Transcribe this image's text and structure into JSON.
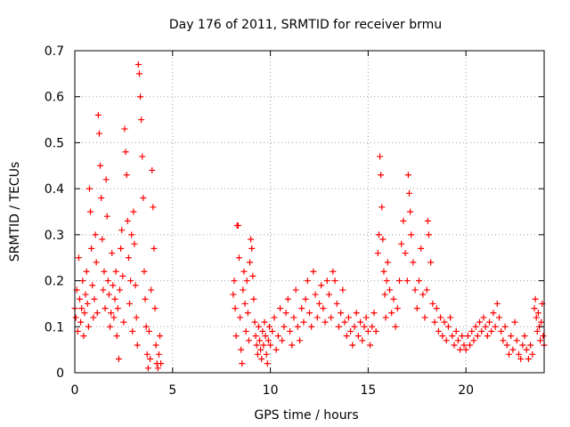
{
  "chart_data": {
    "type": "scatter",
    "title": "Day 176 of 2011, SRMTID for receiver brmu",
    "xlabel": "GPS time / hours",
    "ylabel": "SRMTID / TECUs",
    "xlim": [
      0,
      24
    ],
    "ylim": [
      0,
      0.7
    ],
    "x_ticks": [
      0,
      5,
      10,
      15,
      20
    ],
    "x_tick_labels": [
      "0",
      "5",
      "10",
      "15",
      "20"
    ],
    "y_ticks": [
      0,
      0.1,
      0.2,
      0.3,
      0.4,
      0.5,
      0.6,
      0.7
    ],
    "y_tick_labels": [
      "0",
      "0.1",
      "0.2",
      "0.3",
      "0.4",
      "0.5",
      "0.6",
      "0.7"
    ],
    "grid": true,
    "marker": "+",
    "series_color": "#ff0000",
    "grid_color": "#a0a0a0",
    "series": [
      {
        "name": "SRMTID",
        "points": [
          [
            0.0,
            0.14
          ],
          [
            0.05,
            0.12
          ],
          [
            0.1,
            0.18
          ],
          [
            0.15,
            0.09
          ],
          [
            0.2,
            0.25
          ],
          [
            0.25,
            0.16
          ],
          [
            0.3,
            0.11
          ],
          [
            0.35,
            0.14
          ],
          [
            0.4,
            0.2
          ],
          [
            0.45,
            0.08
          ],
          [
            0.5,
            0.13
          ],
          [
            0.55,
            0.17
          ],
          [
            0.6,
            0.22
          ],
          [
            0.65,
            0.15
          ],
          [
            0.7,
            0.1
          ],
          [
            0.75,
            0.4
          ],
          [
            0.8,
            0.35
          ],
          [
            0.85,
            0.27
          ],
          [
            0.9,
            0.19
          ],
          [
            0.95,
            0.12
          ],
          [
            1.0,
            0.16
          ],
          [
            1.05,
            0.3
          ],
          [
            1.1,
            0.24
          ],
          [
            1.15,
            0.13
          ],
          [
            1.2,
            0.56
          ],
          [
            1.25,
            0.52
          ],
          [
            1.3,
            0.45
          ],
          [
            1.35,
            0.38
          ],
          [
            1.4,
            0.29
          ],
          [
            1.45,
            0.18
          ],
          [
            1.5,
            0.22
          ],
          [
            1.55,
            0.14
          ],
          [
            1.6,
            0.42
          ],
          [
            1.65,
            0.34
          ],
          [
            1.7,
            0.2
          ],
          [
            1.75,
            0.17
          ],
          [
            1.8,
            0.1
          ],
          [
            1.85,
            0.13
          ],
          [
            1.9,
            0.26
          ],
          [
            1.95,
            0.19
          ],
          [
            2.0,
            0.12
          ],
          [
            2.05,
            0.16
          ],
          [
            2.1,
            0.22
          ],
          [
            2.15,
            0.08
          ],
          [
            2.2,
            0.14
          ],
          [
            2.25,
            0.03
          ],
          [
            2.3,
            0.18
          ],
          [
            2.35,
            0.27
          ],
          [
            2.4,
            0.31
          ],
          [
            2.45,
            0.21
          ],
          [
            2.5,
            0.11
          ],
          [
            2.55,
            0.53
          ],
          [
            2.6,
            0.48
          ],
          [
            2.65,
            0.43
          ],
          [
            2.7,
            0.33
          ],
          [
            2.75,
            0.25
          ],
          [
            2.8,
            0.15
          ],
          [
            2.85,
            0.2
          ],
          [
            2.9,
            0.3
          ],
          [
            2.95,
            0.09
          ],
          [
            3.0,
            0.35
          ],
          [
            3.05,
            0.28
          ],
          [
            3.1,
            0.19
          ],
          [
            3.15,
            0.12
          ],
          [
            3.2,
            0.06
          ],
          [
            3.25,
            0.67
          ],
          [
            3.3,
            0.65
          ],
          [
            3.35,
            0.6
          ],
          [
            3.4,
            0.55
          ],
          [
            3.45,
            0.47
          ],
          [
            3.5,
            0.38
          ],
          [
            3.55,
            0.22
          ],
          [
            3.6,
            0.16
          ],
          [
            3.65,
            0.1
          ],
          [
            3.7,
            0.04
          ],
          [
            3.75,
            0.01
          ],
          [
            3.8,
            0.09
          ],
          [
            3.85,
            0.03
          ],
          [
            3.9,
            0.18
          ],
          [
            3.95,
            0.44
          ],
          [
            4.0,
            0.36
          ],
          [
            4.05,
            0.27
          ],
          [
            4.1,
            0.14
          ],
          [
            4.15,
            0.06
          ],
          [
            4.2,
            0.02
          ],
          [
            4.25,
            0.01
          ],
          [
            4.3,
            0.04
          ],
          [
            4.35,
            0.08
          ],
          [
            4.4,
            0.02
          ],
          [
            8.1,
            0.17
          ],
          [
            8.15,
            0.2
          ],
          [
            8.2,
            0.14
          ],
          [
            8.25,
            0.08
          ],
          [
            8.3,
            0.32
          ],
          [
            8.35,
            0.32
          ],
          [
            8.4,
            0.25
          ],
          [
            8.45,
            0.12
          ],
          [
            8.5,
            0.05
          ],
          [
            8.55,
            0.02
          ],
          [
            8.6,
            0.18
          ],
          [
            8.65,
            0.22
          ],
          [
            8.7,
            0.15
          ],
          [
            8.75,
            0.09
          ],
          [
            8.8,
            0.2
          ],
          [
            8.85,
            0.13
          ],
          [
            8.9,
            0.07
          ],
          [
            8.95,
            0.24
          ],
          [
            9.0,
            0.29
          ],
          [
            9.05,
            0.27
          ],
          [
            9.1,
            0.21
          ],
          [
            9.15,
            0.16
          ],
          [
            9.2,
            0.11
          ],
          [
            9.25,
            0.08
          ],
          [
            9.3,
            0.06
          ],
          [
            9.35,
            0.04
          ],
          [
            9.4,
            0.1
          ],
          [
            9.45,
            0.07
          ],
          [
            9.5,
            0.05
          ],
          [
            9.55,
            0.03
          ],
          [
            9.6,
            0.09
          ],
          [
            9.65,
            0.06
          ],
          [
            9.7,
            0.11
          ],
          [
            9.75,
            0.08
          ],
          [
            9.8,
            0.04
          ],
          [
            9.85,
            0.02
          ],
          [
            9.9,
            0.07
          ],
          [
            9.95,
            0.1
          ],
          [
            10.0,
            0.06
          ],
          [
            10.1,
            0.09
          ],
          [
            10.2,
            0.12
          ],
          [
            10.3,
            0.05
          ],
          [
            10.4,
            0.08
          ],
          [
            10.5,
            0.14
          ],
          [
            10.6,
            0.07
          ],
          [
            10.7,
            0.1
          ],
          [
            10.8,
            0.13
          ],
          [
            10.9,
            0.16
          ],
          [
            11.0,
            0.09
          ],
          [
            11.1,
            0.06
          ],
          [
            11.2,
            0.12
          ],
          [
            11.3,
            0.18
          ],
          [
            11.4,
            0.1
          ],
          [
            11.5,
            0.07
          ],
          [
            11.6,
            0.14
          ],
          [
            11.7,
            0.11
          ],
          [
            11.8,
            0.16
          ],
          [
            11.9,
            0.2
          ],
          [
            12.0,
            0.13
          ],
          [
            12.1,
            0.1
          ],
          [
            12.2,
            0.22
          ],
          [
            12.3,
            0.17
          ],
          [
            12.4,
            0.12
          ],
          [
            12.5,
            0.15
          ],
          [
            12.6,
            0.19
          ],
          [
            12.7,
            0.14
          ],
          [
            12.8,
            0.11
          ],
          [
            12.9,
            0.2
          ],
          [
            13.0,
            0.17
          ],
          [
            13.1,
            0.12
          ],
          [
            13.2,
            0.22
          ],
          [
            13.3,
            0.2
          ],
          [
            13.4,
            0.15
          ],
          [
            13.5,
            0.1
          ],
          [
            13.6,
            0.13
          ],
          [
            13.7,
            0.18
          ],
          [
            13.8,
            0.11
          ],
          [
            13.9,
            0.08
          ],
          [
            14.0,
            0.12
          ],
          [
            14.1,
            0.09
          ],
          [
            14.2,
            0.06
          ],
          [
            14.3,
            0.1
          ],
          [
            14.4,
            0.13
          ],
          [
            14.5,
            0.08
          ],
          [
            14.6,
            0.11
          ],
          [
            14.7,
            0.07
          ],
          [
            14.8,
            0.1
          ],
          [
            14.9,
            0.12
          ],
          [
            15.0,
            0.09
          ],
          [
            15.1,
            0.06
          ],
          [
            15.2,
            0.1
          ],
          [
            15.3,
            0.13
          ],
          [
            15.4,
            0.09
          ],
          [
            15.5,
            0.26
          ],
          [
            15.55,
            0.3
          ],
          [
            15.6,
            0.47
          ],
          [
            15.65,
            0.43
          ],
          [
            15.7,
            0.36
          ],
          [
            15.75,
            0.29
          ],
          [
            15.8,
            0.22
          ],
          [
            15.85,
            0.17
          ],
          [
            15.9,
            0.12
          ],
          [
            15.95,
            0.2
          ],
          [
            16.0,
            0.24
          ],
          [
            16.1,
            0.18
          ],
          [
            16.2,
            0.13
          ],
          [
            16.3,
            0.16
          ],
          [
            16.4,
            0.1
          ],
          [
            16.5,
            0.14
          ],
          [
            16.6,
            0.2
          ],
          [
            16.7,
            0.28
          ],
          [
            16.8,
            0.33
          ],
          [
            16.9,
            0.26
          ],
          [
            17.0,
            0.2
          ],
          [
            17.05,
            0.43
          ],
          [
            17.1,
            0.39
          ],
          [
            17.15,
            0.35
          ],
          [
            17.2,
            0.3
          ],
          [
            17.3,
            0.24
          ],
          [
            17.4,
            0.18
          ],
          [
            17.5,
            0.14
          ],
          [
            17.6,
            0.2
          ],
          [
            17.7,
            0.27
          ],
          [
            17.8,
            0.17
          ],
          [
            17.9,
            0.12
          ],
          [
            18.0,
            0.18
          ],
          [
            18.05,
            0.33
          ],
          [
            18.1,
            0.3
          ],
          [
            18.2,
            0.24
          ],
          [
            18.3,
            0.15
          ],
          [
            18.4,
            0.11
          ],
          [
            18.5,
            0.14
          ],
          [
            18.6,
            0.09
          ],
          [
            18.7,
            0.12
          ],
          [
            18.8,
            0.08
          ],
          [
            18.9,
            0.11
          ],
          [
            19.0,
            0.07
          ],
          [
            19.1,
            0.1
          ],
          [
            19.2,
            0.12
          ],
          [
            19.3,
            0.08
          ],
          [
            19.4,
            0.06
          ],
          [
            19.5,
            0.09
          ],
          [
            19.6,
            0.07
          ],
          [
            19.7,
            0.05
          ],
          [
            19.8,
            0.08
          ],
          [
            19.9,
            0.06
          ],
          [
            20.0,
            0.05
          ],
          [
            20.1,
            0.08
          ],
          [
            20.2,
            0.06
          ],
          [
            20.3,
            0.09
          ],
          [
            20.4,
            0.07
          ],
          [
            20.5,
            0.1
          ],
          [
            20.6,
            0.08
          ],
          [
            20.7,
            0.11
          ],
          [
            20.8,
            0.09
          ],
          [
            20.9,
            0.12
          ],
          [
            21.0,
            0.1
          ],
          [
            21.1,
            0.08
          ],
          [
            21.2,
            0.11
          ],
          [
            21.3,
            0.09
          ],
          [
            21.4,
            0.13
          ],
          [
            21.5,
            0.1
          ],
          [
            21.6,
            0.15
          ],
          [
            21.7,
            0.12
          ],
          [
            21.8,
            0.09
          ],
          [
            21.9,
            0.07
          ],
          [
            22.0,
            0.1
          ],
          [
            22.1,
            0.06
          ],
          [
            22.2,
            0.04
          ],
          [
            22.3,
            0.08
          ],
          [
            22.4,
            0.05
          ],
          [
            22.5,
            0.11
          ],
          [
            22.6,
            0.07
          ],
          [
            22.7,
            0.04
          ],
          [
            22.8,
            0.03
          ],
          [
            22.9,
            0.06
          ],
          [
            23.0,
            0.08
          ],
          [
            23.1,
            0.05
          ],
          [
            23.2,
            0.03
          ],
          [
            23.3,
            0.06
          ],
          [
            23.4,
            0.04
          ],
          [
            23.5,
            0.14
          ],
          [
            23.55,
            0.16
          ],
          [
            23.6,
            0.12
          ],
          [
            23.65,
            0.09
          ],
          [
            23.7,
            0.13
          ],
          [
            23.75,
            0.1
          ],
          [
            23.8,
            0.07
          ],
          [
            23.85,
            0.11
          ],
          [
            23.9,
            0.15
          ],
          [
            23.95,
            0.08
          ],
          [
            24.0,
            0.06
          ]
        ]
      }
    ]
  }
}
